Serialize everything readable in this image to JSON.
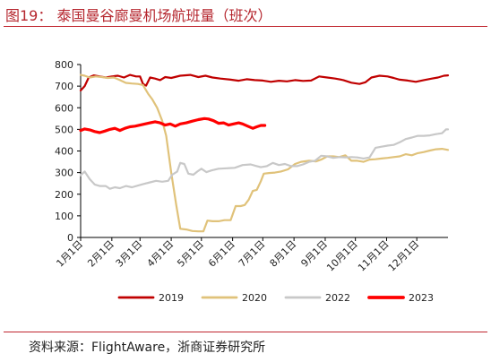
{
  "figure": {
    "title": "图19：  泰国曼谷廊曼机场航班量（班次）",
    "source": "资料来源：FlightAware，浙商证券研究所"
  },
  "colors": {
    "rule": "#c0262e",
    "axis": "#000000"
  },
  "chart_data": {
    "type": "line",
    "title": "",
    "xlabel": "",
    "ylabel": "",
    "ylim": [
      0,
      800
    ],
    "yticks": [
      0,
      100,
      200,
      300,
      400,
      500,
      600,
      700,
      800
    ],
    "x_unit": "day of year",
    "xlim": [
      1,
      366
    ],
    "month_labels": [
      "1月1日",
      "2月1日",
      "3月1日",
      "4月1日",
      "5月1日",
      "6月1日",
      "7月1日",
      "8月1日",
      "9月1日",
      "10月1日",
      "11月1日",
      "12月1日"
    ],
    "month_days": [
      1,
      32,
      60,
      91,
      121,
      152,
      182,
      213,
      244,
      274,
      305,
      335
    ],
    "legend_position": "bottom",
    "series": [
      {
        "name": "2019",
        "color": "#c00000",
        "width": 2.2,
        "points": [
          [
            1,
            680
          ],
          [
            5,
            700
          ],
          [
            9,
            740
          ],
          [
            14,
            750
          ],
          [
            20,
            745
          ],
          [
            26,
            740
          ],
          [
            32,
            745
          ],
          [
            38,
            748
          ],
          [
            44,
            740
          ],
          [
            50,
            752
          ],
          [
            56,
            745
          ],
          [
            60,
            745
          ],
          [
            63,
            710
          ],
          [
            66,
            702
          ],
          [
            70,
            740
          ],
          [
            75,
            735
          ],
          [
            80,
            728
          ],
          [
            85,
            742
          ],
          [
            91,
            738
          ],
          [
            100,
            748
          ],
          [
            110,
            752
          ],
          [
            118,
            742
          ],
          [
            125,
            748
          ],
          [
            132,
            740
          ],
          [
            140,
            735
          ],
          [
            150,
            730
          ],
          [
            158,
            725
          ],
          [
            166,
            732
          ],
          [
            174,
            728
          ],
          [
            182,
            726
          ],
          [
            190,
            720
          ],
          [
            198,
            725
          ],
          [
            206,
            722
          ],
          [
            214,
            728
          ],
          [
            222,
            724
          ],
          [
            230,
            726
          ],
          [
            238,
            745
          ],
          [
            246,
            740
          ],
          [
            254,
            735
          ],
          [
            262,
            728
          ],
          [
            270,
            716
          ],
          [
            278,
            710
          ],
          [
            284,
            718
          ],
          [
            290,
            740
          ],
          [
            298,
            748
          ],
          [
            306,
            745
          ],
          [
            312,
            738
          ],
          [
            318,
            730
          ],
          [
            326,
            726
          ],
          [
            334,
            720
          ],
          [
            342,
            728
          ],
          [
            350,
            735
          ],
          [
            356,
            740
          ],
          [
            362,
            748
          ],
          [
            366,
            750
          ]
        ]
      },
      {
        "name": "2020",
        "color": "#e0c27a",
        "width": 2.2,
        "points": [
          [
            1,
            752
          ],
          [
            5,
            748
          ],
          [
            10,
            740
          ],
          [
            16,
            745
          ],
          [
            22,
            742
          ],
          [
            28,
            738
          ],
          [
            34,
            740
          ],
          [
            40,
            728
          ],
          [
            46,
            715
          ],
          [
            52,
            712
          ],
          [
            58,
            710
          ],
          [
            63,
            705
          ],
          [
            68,
            665
          ],
          [
            72,
            640
          ],
          [
            77,
            600
          ],
          [
            82,
            540
          ],
          [
            86,
            470
          ],
          [
            91,
            300
          ],
          [
            96,
            150
          ],
          [
            100,
            40
          ],
          [
            106,
            37
          ],
          [
            112,
            30
          ],
          [
            118,
            28
          ],
          [
            123,
            28
          ],
          [
            127,
            78
          ],
          [
            132,
            75
          ],
          [
            138,
            75
          ],
          [
            144,
            80
          ],
          [
            150,
            80
          ],
          [
            155,
            145
          ],
          [
            160,
            145
          ],
          [
            164,
            150
          ],
          [
            168,
            175
          ],
          [
            172,
            215
          ],
          [
            176,
            220
          ],
          [
            180,
            260
          ],
          [
            183,
            295
          ],
          [
            188,
            298
          ],
          [
            194,
            300
          ],
          [
            200,
            305
          ],
          [
            207,
            315
          ],
          [
            214,
            340
          ],
          [
            220,
            350
          ],
          [
            228,
            355
          ],
          [
            235,
            352
          ],
          [
            240,
            360
          ],
          [
            246,
            375
          ],
          [
            252,
            375
          ],
          [
            258,
            372
          ],
          [
            264,
            380
          ],
          [
            270,
            355
          ],
          [
            276,
            355
          ],
          [
            282,
            350
          ],
          [
            288,
            360
          ],
          [
            294,
            362
          ],
          [
            300,
            365
          ],
          [
            306,
            368
          ],
          [
            312,
            372
          ],
          [
            318,
            375
          ],
          [
            324,
            385
          ],
          [
            330,
            380
          ],
          [
            336,
            390
          ],
          [
            342,
            395
          ],
          [
            348,
            402
          ],
          [
            354,
            408
          ],
          [
            360,
            410
          ],
          [
            366,
            405
          ]
        ]
      },
      {
        "name": "2022",
        "color": "#c8c8c8",
        "width": 2.2,
        "points": [
          [
            1,
            288
          ],
          [
            5,
            305
          ],
          [
            10,
            270
          ],
          [
            15,
            245
          ],
          [
            20,
            238
          ],
          [
            26,
            238
          ],
          [
            30,
            225
          ],
          [
            35,
            232
          ],
          [
            40,
            228
          ],
          [
            46,
            238
          ],
          [
            52,
            232
          ],
          [
            58,
            240
          ],
          [
            64,
            248
          ],
          [
            70,
            255
          ],
          [
            76,
            262
          ],
          [
            82,
            258
          ],
          [
            88,
            262
          ],
          [
            92,
            290
          ],
          [
            97,
            305
          ],
          [
            100,
            345
          ],
          [
            104,
            340
          ],
          [
            108,
            295
          ],
          [
            113,
            290
          ],
          [
            117,
            305
          ],
          [
            121,
            318
          ],
          [
            126,
            302
          ],
          [
            131,
            310
          ],
          [
            138,
            318
          ],
          [
            146,
            320
          ],
          [
            154,
            322
          ],
          [
            162,
            335
          ],
          [
            170,
            338
          ],
          [
            176,
            330
          ],
          [
            180,
            325
          ],
          [
            186,
            330
          ],
          [
            192,
            345
          ],
          [
            198,
            335
          ],
          [
            204,
            340
          ],
          [
            210,
            330
          ],
          [
            216,
            330
          ],
          [
            222,
            338
          ],
          [
            228,
            350
          ],
          [
            234,
            355
          ],
          [
            240,
            378
          ],
          [
            246,
            375
          ],
          [
            252,
            368
          ],
          [
            258,
            372
          ],
          [
            264,
            370
          ],
          [
            270,
            372
          ],
          [
            276,
            370
          ],
          [
            282,
            365
          ],
          [
            288,
            370
          ],
          [
            294,
            415
          ],
          [
            300,
            420
          ],
          [
            306,
            425
          ],
          [
            312,
            428
          ],
          [
            318,
            440
          ],
          [
            324,
            455
          ],
          [
            330,
            462
          ],
          [
            336,
            470
          ],
          [
            342,
            470
          ],
          [
            348,
            472
          ],
          [
            354,
            478
          ],
          [
            360,
            482
          ],
          [
            364,
            500
          ],
          [
            366,
            500
          ]
        ]
      },
      {
        "name": "2023",
        "color": "#ff0000",
        "width": 3.2,
        "points": [
          [
            1,
            495
          ],
          [
            5,
            502
          ],
          [
            10,
            498
          ],
          [
            15,
            490
          ],
          [
            20,
            485
          ],
          [
            25,
            492
          ],
          [
            30,
            500
          ],
          [
            35,
            505
          ],
          [
            40,
            495
          ],
          [
            45,
            505
          ],
          [
            50,
            512
          ],
          [
            55,
            515
          ],
          [
            60,
            520
          ],
          [
            65,
            525
          ],
          [
            70,
            530
          ],
          [
            75,
            535
          ],
          [
            80,
            530
          ],
          [
            85,
            520
          ],
          [
            90,
            525
          ],
          [
            95,
            515
          ],
          [
            100,
            525
          ],
          [
            106,
            530
          ],
          [
            112,
            538
          ],
          [
            118,
            545
          ],
          [
            124,
            550
          ],
          [
            128,
            548
          ],
          [
            133,
            540
          ],
          [
            138,
            528
          ],
          [
            143,
            530
          ],
          [
            148,
            520
          ],
          [
            153,
            525
          ],
          [
            158,
            530
          ],
          [
            162,
            525
          ],
          [
            167,
            515
          ],
          [
            172,
            505
          ],
          [
            176,
            512
          ],
          [
            180,
            518
          ],
          [
            184,
            518
          ]
        ]
      }
    ]
  }
}
